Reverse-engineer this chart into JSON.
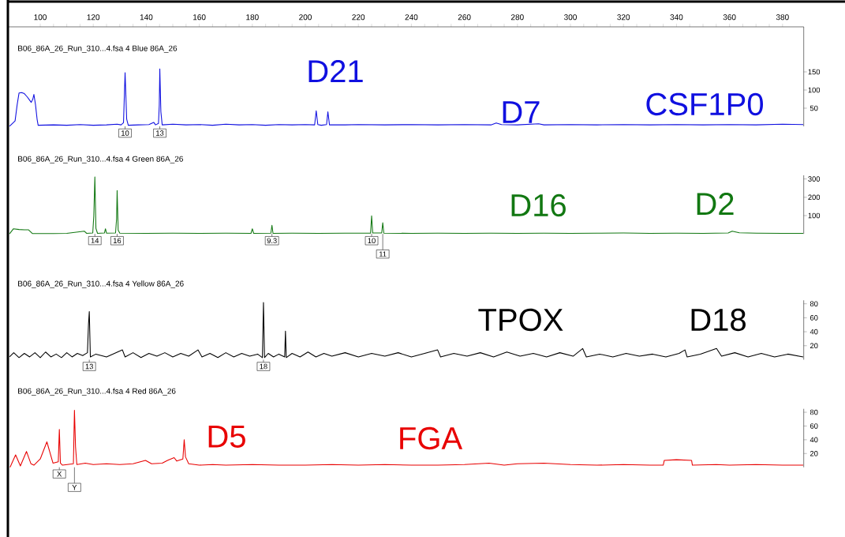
{
  "chart_data": [
    {
      "type": "line",
      "title": "B06_86A_26_Run_310...4.fsa 4 Blue 86A_26",
      "xlim": [
        88,
        388
      ],
      "ylim": [
        0,
        274
      ],
      "yticks": [
        50,
        100,
        150
      ],
      "xticks": [
        100,
        120,
        140,
        160,
        180,
        200,
        220,
        240,
        260,
        280,
        300,
        320,
        340,
        360,
        380
      ],
      "x": [
        88.4,
        89.5,
        90.5,
        91.3,
        92,
        93,
        94,
        95.1,
        96,
        96.6,
        97.2,
        97.6,
        98.2,
        98.8,
        99.2,
        105,
        110,
        115,
        120,
        125,
        129,
        130.5,
        131.4,
        132,
        132.6,
        133.2,
        137,
        141,
        142.8,
        143.5,
        144.6,
        144.9,
        145.1,
        145.5,
        146,
        150,
        155,
        160,
        165,
        170,
        175,
        180,
        185,
        190,
        195,
        200,
        203.5,
        204.1,
        204.7,
        206,
        208,
        208.5,
        209.1,
        215,
        220,
        230,
        240,
        250,
        260,
        270,
        272,
        274,
        280,
        288,
        290,
        300,
        310,
        320,
        330,
        340,
        350,
        360,
        370,
        380,
        387.8
      ],
      "series": [
        {
          "color": "#1010e0",
          "values": [
            0,
            8,
            15,
            60,
            92,
            93,
            90,
            81,
            72,
            66,
            75,
            88,
            60,
            20,
            3,
            4,
            3,
            5,
            3,
            4,
            6,
            4,
            10,
            148,
            20,
            3,
            4,
            5,
            11,
            4,
            8,
            58,
            158,
            40,
            4,
            6,
            4,
            5,
            3,
            6,
            4,
            5,
            3,
            5,
            4,
            5,
            4,
            43,
            5,
            3,
            5,
            40,
            4,
            4,
            5,
            4,
            5,
            4,
            5,
            4,
            9,
            5,
            4,
            7,
            4,
            5,
            4,
            5,
            4,
            5,
            4,
            5,
            4,
            6,
            5
          ]
        }
      ],
      "annotations": [
        {
          "text": "10",
          "x": 132.0,
          "y": 0
        },
        {
          "text": "13",
          "x": 145.1,
          "y": 0
        },
        "D21",
        "D7",
        "CSF1P0"
      ]
    },
    {
      "type": "line",
      "title": "B06_86A_26_Run_310...4.fsa 4 Green 86A_26",
      "xlim": [
        88,
        388
      ],
      "ylim": [
        0,
        320
      ],
      "yticks": [
        100,
        200,
        300
      ],
      "tick_labels": "y",
      "x": [
        88.4,
        89.9,
        92,
        94,
        95.6,
        97,
        105,
        110,
        116.6,
        117.5,
        119.8,
        120.2,
        120.6,
        121,
        121.6,
        124.2,
        124.6,
        125,
        128.4,
        128.8,
        129,
        129.4,
        130,
        140,
        150,
        160,
        170,
        179.5,
        180,
        180.5,
        187,
        187.4,
        187.8,
        195,
        205,
        215,
        224.6,
        225,
        225.4,
        228.8,
        229.2,
        229.6,
        240,
        250,
        260,
        270,
        280,
        290,
        300,
        310,
        320,
        330,
        340,
        350,
        359.5,
        361,
        363.7,
        370,
        380,
        387.8
      ],
      "series": [
        {
          "color": "#127812",
          "values": [
            0,
            28,
            24,
            22,
            22,
            2,
            2,
            3,
            15,
            3,
            5,
            99,
            311,
            30,
            3,
            5,
            28,
            4,
            5,
            84,
            237,
            20,
            4,
            3,
            4,
            3,
            4,
            3,
            28,
            3,
            4,
            47,
            3,
            4,
            3,
            4,
            4,
            99,
            5,
            5,
            61,
            4,
            3,
            4,
            3,
            4,
            3,
            4,
            3,
            4,
            5,
            3,
            4,
            3,
            5,
            15,
            6,
            4,
            3,
            3
          ]
        }
      ],
      "annotations": [
        {
          "text": "14",
          "x": 120.6,
          "y": 0
        },
        {
          "text": "16",
          "x": 129.0,
          "y": 0
        },
        {
          "text": "9.3",
          "x": 187.4,
          "y": 0
        },
        {
          "text": "10",
          "x": 225.0,
          "y": 0
        },
        {
          "text": "11",
          "x": 229.2,
          "y": 0
        },
        "D16",
        "D2"
      ]
    },
    {
      "type": "line",
      "title": "B06_86A_26_Run_310...4.fsa 4 Yellow 86A_26",
      "xlim": [
        88,
        388
      ],
      "ylim": [
        0,
        85
      ],
      "yticks": [
        20,
        40,
        60,
        80
      ],
      "tick_labels": "y",
      "x": [
        88.4,
        90,
        92,
        94,
        96,
        98,
        100,
        102,
        104,
        106,
        108,
        110,
        112,
        114,
        116,
        117.8,
        118.2,
        118.5,
        118.9,
        121,
        125,
        128,
        131,
        132,
        135,
        138,
        141,
        144,
        147,
        150,
        153,
        156,
        159.5,
        161,
        164,
        167,
        170,
        173,
        176,
        179,
        182,
        183.8,
        184.2,
        184.6,
        186,
        188,
        190,
        192.2,
        192.5,
        192.8,
        195,
        198,
        201,
        204,
        207,
        210,
        215,
        220,
        225,
        230,
        235,
        240,
        245,
        249.9,
        251,
        256,
        261,
        266,
        271,
        276,
        281,
        286,
        291,
        296,
        301,
        304.6,
        306,
        311,
        316,
        321,
        326,
        331,
        336,
        341,
        343.2,
        344,
        349,
        355.1,
        357,
        362,
        367,
        372,
        377,
        382,
        387.8
      ],
      "series": [
        {
          "color": "#000000",
          "values": [
            4,
            10,
            3,
            9,
            4,
            10,
            3,
            11,
            4,
            8,
            3,
            10,
            4,
            9,
            6,
            10,
            51,
            69,
            4,
            8,
            4,
            9,
            14,
            4,
            10,
            3,
            9,
            5,
            10,
            4,
            9,
            5,
            14,
            4,
            9,
            3,
            10,
            4,
            9,
            5,
            8,
            3,
            82,
            3,
            9,
            4,
            8,
            4,
            41,
            3,
            9,
            4,
            11,
            4,
            9,
            5,
            10,
            4,
            9,
            5,
            10,
            4,
            9,
            14,
            4,
            9,
            5,
            10,
            4,
            11,
            5,
            9,
            4,
            10,
            5,
            16,
            4,
            8,
            4,
            9,
            5,
            8,
            4,
            9,
            14,
            4,
            8,
            16,
            5,
            10,
            4,
            9,
            4,
            8,
            4
          ]
        }
      ],
      "annotations": [
        {
          "text": "13",
          "x": 118.5,
          "y": 0
        },
        {
          "text": "18",
          "x": 184.2,
          "y": 0
        },
        "TPOX",
        "D18"
      ]
    },
    {
      "type": "line",
      "title": "B06_86A_26_Run_310...4.fsa 4 Red 86A_26",
      "xlim": [
        88,
        388
      ],
      "ylim": [
        0,
        85
      ],
      "yticks": [
        20,
        40,
        60,
        80
      ],
      "tick_labels": "y",
      "x": [
        88.6,
        90.7,
        92.5,
        94.8,
        96.5,
        97.6,
        100,
        102.5,
        104.8,
        106.8,
        107.2,
        107.6,
        108.4,
        112.5,
        112.9,
        113.3,
        113.8,
        117,
        120,
        125,
        130,
        135,
        139.7,
        142,
        146,
        148,
        150.5,
        151.5,
        153.8,
        154.3,
        154.8,
        156,
        160,
        165,
        170,
        180,
        190,
        200,
        210,
        220,
        230,
        240,
        250,
        260,
        269.3,
        275,
        280,
        290,
        300,
        310,
        320,
        330,
        335,
        335.4,
        340,
        345.7,
        346,
        355,
        360,
        370,
        380,
        387.8
      ],
      "series": [
        {
          "color": "#e80000",
          "values": [
            0,
            18,
            2,
            23,
            5,
            3,
            12,
            37,
            6,
            8,
            55,
            6,
            3,
            5,
            83,
            30,
            4,
            6,
            4,
            5,
            4,
            5,
            10,
            5,
            6,
            10,
            14,
            9,
            12,
            40,
            15,
            5,
            3,
            4,
            3,
            4,
            3,
            3,
            4,
            3,
            4,
            3,
            3,
            4,
            6,
            3,
            5,
            6,
            4,
            3,
            4,
            3,
            3,
            10,
            11,
            10,
            3,
            4,
            3,
            4,
            3,
            3
          ]
        }
      ],
      "annotations": [
        {
          "text": "X",
          "x": 107.2,
          "y": 0
        },
        {
          "text": "Y",
          "x": 112.9,
          "y": 0
        },
        "D5",
        "FGA"
      ]
    }
  ]
}
